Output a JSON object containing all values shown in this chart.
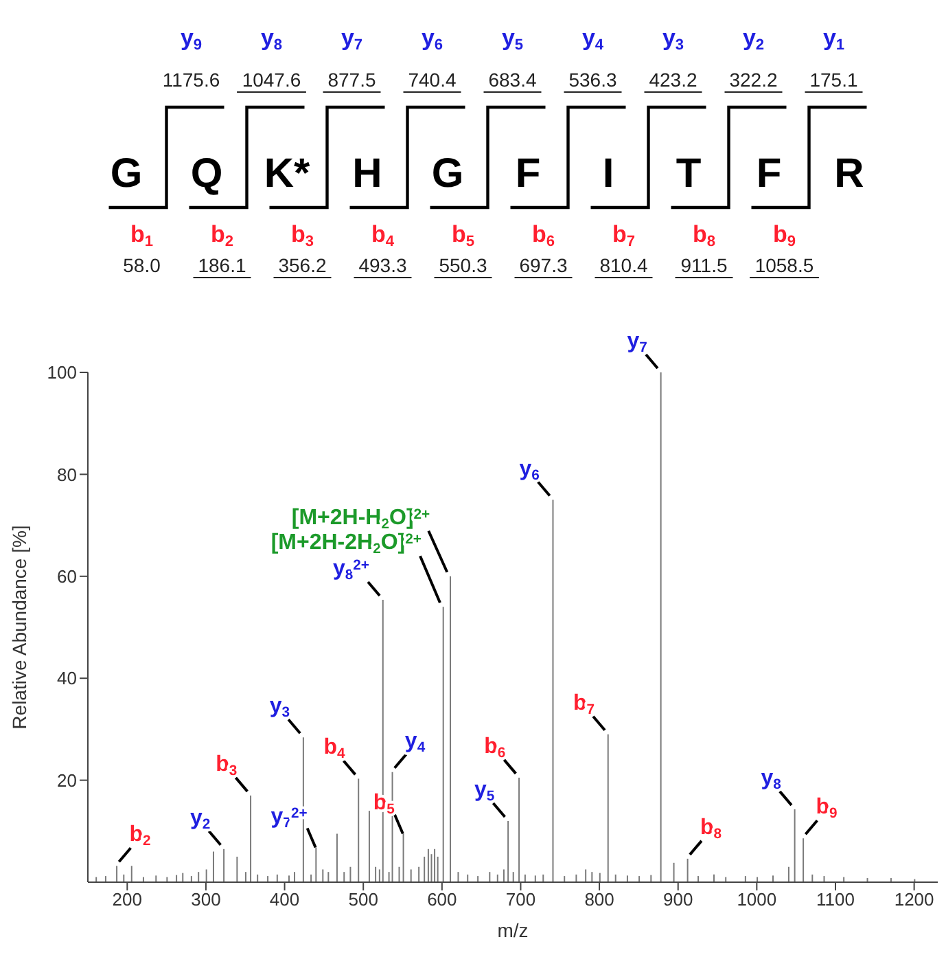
{
  "chart_data": {
    "type": "bar",
    "xlabel": "m/z",
    "ylabel": "Relative Abundance [%]",
    "x": [
      160,
      172,
      186.1,
      195,
      205,
      220,
      236,
      250,
      262,
      270,
      281,
      290,
      300,
      309,
      322.2,
      339,
      350,
      356.2,
      365,
      378,
      390,
      405,
      412,
      423.2,
      433,
      439.3,
      448,
      455,
      466,
      475,
      483,
      493.3,
      507,
      515,
      520,
      524.3,
      532,
      536.3,
      545,
      550.3,
      560,
      570,
      577,
      582,
      586,
      590,
      594,
      601,
      610,
      620,
      632,
      645,
      660,
      670,
      678,
      683.4,
      690,
      697.3,
      705,
      718,
      728,
      740.4,
      755,
      770,
      782,
      790,
      800,
      810.4,
      820,
      835,
      850,
      865,
      877.5,
      894,
      911.5,
      925,
      945,
      960,
      985,
      1000,
      1020,
      1040,
      1047.6,
      1058.5,
      1070,
      1085,
      1110,
      1140,
      1170,
      1200
    ],
    "values": [
      1,
      1.2,
      3.2,
      1.5,
      3.2,
      1,
      1.3,
      1,
      1.4,
      1.8,
      1.2,
      2,
      2.5,
      6,
      6.5,
      5,
      2,
      17,
      1.5,
      1.2,
      1.5,
      1.3,
      2,
      28.4,
      1.5,
      6.8,
      2.5,
      2,
      9.5,
      2,
      3,
      20.3,
      14,
      3,
      2.5,
      55.4,
      2,
      21.6,
      3,
      9.5,
      2.5,
      3,
      5,
      6.5,
      5.5,
      6.5,
      5,
      54,
      60,
      2,
      1.5,
      1.2,
      2,
      1.5,
      2.5,
      12,
      2,
      20.5,
      1.5,
      1.3,
      1.5,
      75,
      1.2,
      1.5,
      2.5,
      2,
      1.8,
      29,
      1.5,
      1.3,
      1.2,
      1.4,
      100,
      3.8,
      4.6,
      1.2,
      1.5,
      1,
      1.2,
      1,
      1.3,
      3,
      14.3,
      8.6,
      1.5,
      1.2,
      1,
      0.8,
      0.8,
      0.6
    ],
    "color": "#7a7a7a",
    "xlim": [
      150,
      1230
    ],
    "xticks": [
      200,
      300,
      400,
      500,
      600,
      700,
      800,
      900,
      1000,
      1100,
      1200
    ],
    "ylim": [
      0,
      100
    ],
    "yticks": [
      20,
      40,
      60,
      80,
      100
    ],
    "annotations": [
      "y$_{9}$",
      "y$_{8}$",
      "y$_{7}$",
      "y$_{6}$",
      "y$_{5}$",
      "y$_{4}$",
      "y$_{3}$",
      "y$_{2}$",
      "y$_{1}$",
      "1175.6",
      "1047.6",
      "877.5",
      "740.4",
      "683.4",
      "536.3",
      "423.2",
      "322.2",
      "175.1",
      "G",
      "Q",
      "K*",
      "H",
      "G",
      "F",
      "I",
      "T",
      "F",
      "R",
      "b$_{1}$",
      "b$_{2}$",
      "b$_{3}$",
      "b$_{4}$",
      "b$_{5}$",
      "b$_{6}$",
      "b$_{7}$",
      "b$_{8}$",
      "b$_{9}$",
      "58.0",
      "186.1",
      "356.2",
      "493.3",
      "550.3",
      "697.3",
      "810.4",
      "911.5",
      "1058.5",
      {
        "text": "b$_{2}$",
        "x": 186.1,
        "y": 3.2
      },
      {
        "text": "y$_{2}$",
        "x": 322.2,
        "y": 6.5
      },
      {
        "text": "b$_{3}$",
        "x": 356.2,
        "y": 17
      },
      {
        "text": "y$_{3}$",
        "x": 423.2,
        "y": 28.4
      },
      {
        "text": "y$_{7}$$^{2+}$",
        "x": 439.3,
        "y": 6.8
      },
      {
        "text": "b$_{4}$",
        "x": 493.3,
        "y": 20.3
      },
      {
        "text": "y$_{8}$$^{2+}$",
        "x": 524.3,
        "y": 55.4
      },
      {
        "text": "y$_{4}$",
        "x": 536.3,
        "y": 21.6
      },
      {
        "text": "b$_{5}$",
        "x": 550.3,
        "y": 9.5
      },
      {
        "text": "[M+2H-2H$_{2}$O]$^{2+}$",
        "x": 601,
        "y": 54
      },
      {
        "text": "[M+2H-H$_{2}$O]$^{2+}$",
        "x": 610,
        "y": 60
      },
      {
        "text": "y$_{5}$",
        "x": 683.4,
        "y": 12
      },
      {
        "text": "b$_{6}$",
        "x": 697.3,
        "y": 20.5
      },
      {
        "text": "y$_{6}$",
        "x": 740.4,
        "y": 75
      },
      {
        "text": "b$_{7}$",
        "x": 810.4,
        "y": 29
      },
      {
        "text": "y$_{7}$",
        "x": 877.5,
        "y": 100
      },
      {
        "text": "b$_{8}$",
        "x": 911.5,
        "y": 4.6
      },
      {
        "text": "y$_{8}$",
        "x": 1047.6,
        "y": 14.3
      },
      {
        "text": "b$_{9}$",
        "x": 1058.5,
        "y": 8.6
      }
    ]
  }
}
